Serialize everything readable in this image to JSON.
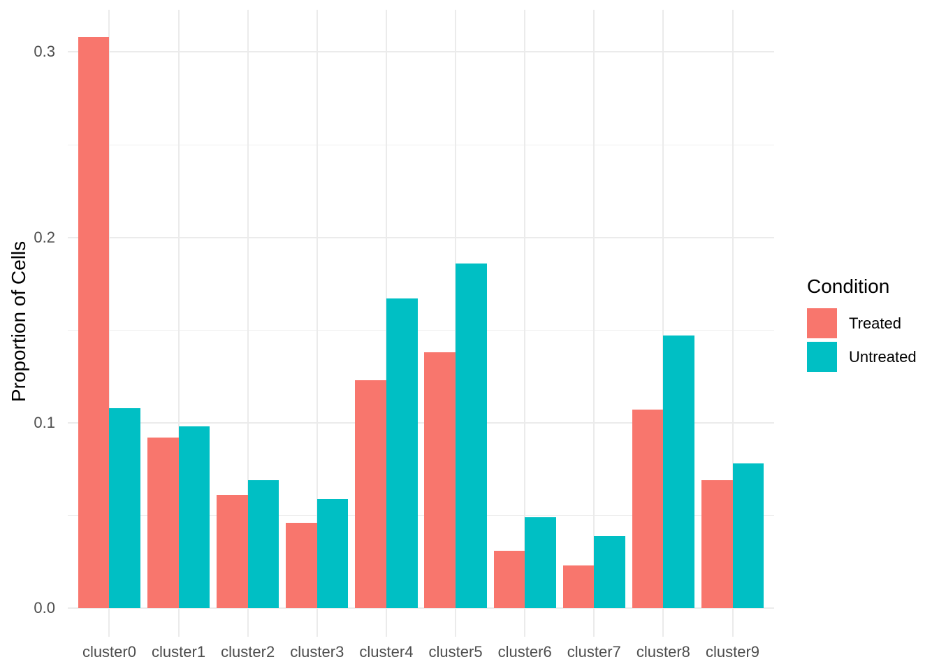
{
  "chart_data": {
    "type": "bar",
    "title": "",
    "xlabel": "",
    "ylabel": "Proportion of Cells",
    "categories": [
      "cluster0",
      "cluster1",
      "cluster2",
      "cluster3",
      "cluster4",
      "cluster5",
      "cluster6",
      "cluster7",
      "cluster8",
      "cluster9"
    ],
    "series": [
      {
        "name": "Treated",
        "color": "#F8766D",
        "values": [
          0.308,
          0.092,
          0.061,
          0.046,
          0.123,
          0.138,
          0.031,
          0.023,
          0.107,
          0.069
        ]
      },
      {
        "name": "Untreated",
        "color": "#00BFC4",
        "values": [
          0.108,
          0.098,
          0.069,
          0.059,
          0.167,
          0.186,
          0.049,
          0.039,
          0.147,
          0.078
        ]
      }
    ],
    "ylim": [
      0,
      0.323
    ],
    "yticks": [
      0.0,
      0.1,
      0.2,
      0.3
    ],
    "ytick_labels": [
      "0.0",
      "0.1",
      "0.2",
      "0.3"
    ],
    "yticks_minor": [
      0.05,
      0.15,
      0.25
    ],
    "grid": "major-and-minor, light gray on white",
    "legend": {
      "title": "Condition",
      "position": "right"
    },
    "bar_layout": "dodged"
  }
}
